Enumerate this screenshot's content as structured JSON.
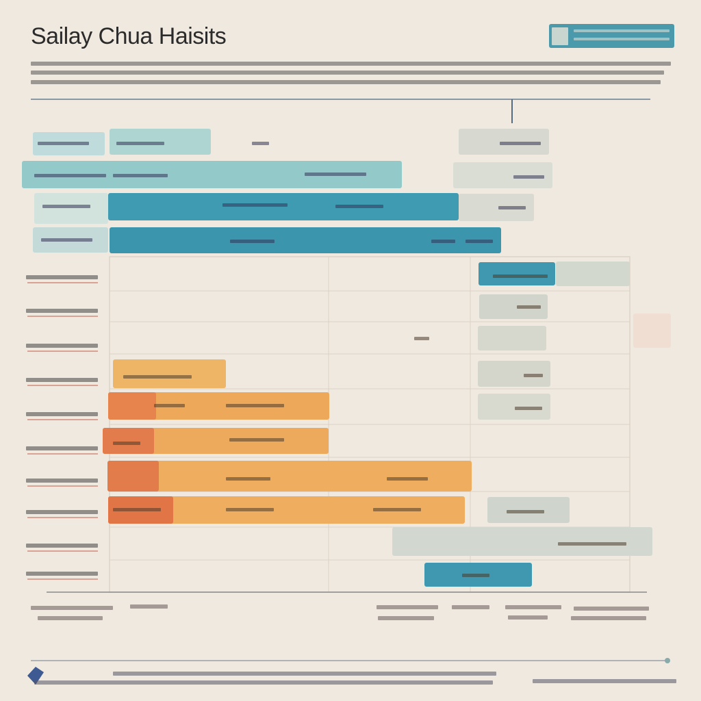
{
  "header": {
    "title": "Sailay Chua Haisits"
  }
}
